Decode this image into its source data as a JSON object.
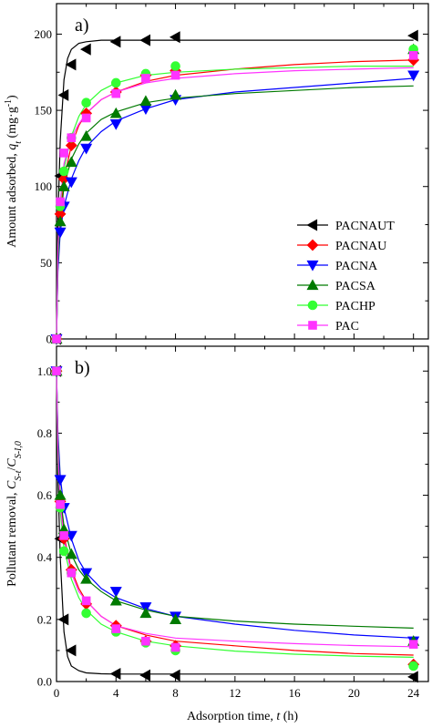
{
  "chart_data": [
    {
      "type": "scatter",
      "panel_label": "a)",
      "ylabel": "Amount adsorbed, q_t (mg·g⁻¹)",
      "ylim": [
        0,
        220
      ],
      "xlim": [
        0,
        25
      ],
      "yticks": [
        "0",
        "50",
        "100",
        "150",
        "200"
      ],
      "ytick_values": [
        0,
        50,
        100,
        150,
        200
      ],
      "legend_position": "center-right",
      "series": [
        {
          "name": "PACNAUT",
          "color": "#000000",
          "marker": "triangle-left",
          "x": [
            0,
            0.25,
            0.5,
            1,
            2,
            4,
            6,
            8,
            24
          ],
          "y": [
            0,
            107,
            160,
            180,
            190,
            195,
            196,
            198,
            199
          ],
          "fit_x": [
            0,
            0.1,
            0.25,
            0.5,
            0.75,
            1,
            1.5,
            2,
            3,
            4,
            6,
            8,
            24
          ],
          "fit_y": [
            0,
            80,
            130,
            170,
            184,
            190,
            194,
            195,
            196,
            196,
            196,
            196,
            196
          ]
        },
        {
          "name": "PACNAU",
          "color": "#ff0000",
          "marker": "diamond",
          "x": [
            0,
            0.25,
            0.5,
            1,
            2,
            4,
            6,
            8,
            24
          ],
          "y": [
            0,
            82,
            105,
            127,
            148,
            162,
            173,
            176,
            183
          ],
          "fit_x": [
            0,
            0.1,
            0.25,
            0.5,
            1,
            1.5,
            2,
            3,
            4,
            6,
            8,
            12,
            16,
            20,
            24
          ],
          "fit_y": [
            0,
            50,
            80,
            105,
            127,
            140,
            148,
            157,
            162,
            169,
            173,
            177,
            180,
            182,
            183
          ]
        },
        {
          "name": "PACNA",
          "color": "#0000ff",
          "marker": "triangle-down",
          "x": [
            0,
            0.25,
            0.5,
            1,
            2,
            4,
            6,
            8,
            24
          ],
          "y": [
            0,
            70,
            87,
            103,
            125,
            141,
            151,
            157,
            173
          ],
          "fit_x": [
            0,
            0.1,
            0.25,
            0.5,
            1,
            1.5,
            2,
            3,
            4,
            6,
            8,
            12,
            16,
            20,
            24
          ],
          "fit_y": [
            0,
            45,
            70,
            87,
            105,
            117,
            126,
            136,
            143,
            151,
            157,
            162,
            165,
            168,
            171
          ]
        },
        {
          "name": "PACSA",
          "color": "#007a00",
          "marker": "triangle-up",
          "x": [
            0,
            0.25,
            0.5,
            1,
            2,
            4,
            6,
            8,
            24
          ],
          "y": [
            0,
            77,
            100,
            116,
            133,
            148,
            156,
            160,
            190
          ],
          "fit_x": [
            0,
            0.1,
            0.25,
            0.5,
            1,
            1.5,
            2,
            3,
            4,
            6,
            8,
            12,
            16,
            20,
            24
          ],
          "fit_y": [
            0,
            50,
            77,
            100,
            118,
            128,
            135,
            144,
            149,
            155,
            158,
            161,
            163,
            165,
            166
          ]
        },
        {
          "name": "PACHP",
          "color": "#33ff33",
          "marker": "circle",
          "x": [
            0,
            0.25,
            0.5,
            1,
            2,
            4,
            6,
            8,
            24
          ],
          "y": [
            0,
            87,
            110,
            132,
            155,
            168,
            174,
            179,
            190
          ],
          "fit_x": [
            0,
            0.1,
            0.25,
            0.5,
            1,
            1.5,
            2,
            3,
            4,
            6,
            8,
            12,
            16,
            20,
            24
          ],
          "fit_y": [
            0,
            60,
            87,
            112,
            133,
            146,
            154,
            163,
            168,
            173,
            175,
            177,
            178,
            179,
            179
          ]
        },
        {
          "name": "PAC",
          "color": "#ff33ff",
          "marker": "square",
          "x": [
            0,
            0.25,
            0.5,
            1,
            2,
            4,
            6,
            8,
            24
          ],
          "y": [
            0,
            90,
            122,
            132,
            145,
            161,
            171,
            173,
            186
          ],
          "fit_x": [
            0,
            0.1,
            0.25,
            0.5,
            1,
            1.5,
            2,
            3,
            4,
            6,
            8,
            12,
            16,
            20,
            24
          ],
          "fit_y": [
            0,
            60,
            90,
            115,
            132,
            141,
            148,
            157,
            162,
            168,
            171,
            174,
            176,
            177,
            178
          ]
        }
      ]
    },
    {
      "type": "scatter",
      "panel_label": "b)",
      "xlabel": "Adsorption time, t (h)",
      "ylabel": "Pollutant removal, C_S-t/C_S-I,0",
      "ylim": [
        0,
        1.08
      ],
      "xlim": [
        0,
        25
      ],
      "xticks": [
        "0",
        "4",
        "8",
        "12",
        "16",
        "20",
        "24"
      ],
      "xtick_values": [
        0,
        4,
        8,
        12,
        16,
        20,
        24
      ],
      "yticks": [
        "0.0",
        "0.2",
        "0.4",
        "0.6",
        "0.8",
        "1.0"
      ],
      "ytick_values": [
        0,
        0.2,
        0.4,
        0.6,
        0.8,
        1.0
      ],
      "series": [
        {
          "name": "PACNAUT",
          "color": "#000000",
          "marker": "triangle-left",
          "x": [
            0,
            0.25,
            0.5,
            1,
            4,
            6,
            8,
            24
          ],
          "y": [
            1.0,
            0.46,
            0.2,
            0.1,
            0.025,
            0.02,
            0.02,
            0.015
          ],
          "fit_x": [
            0,
            0.1,
            0.25,
            0.5,
            0.75,
            1,
            1.5,
            2,
            3,
            4,
            6,
            8,
            24
          ],
          "fit_y": [
            1.0,
            0.65,
            0.4,
            0.16,
            0.08,
            0.05,
            0.035,
            0.028,
            0.025,
            0.024,
            0.024,
            0.024,
            0.024
          ]
        },
        {
          "name": "PACNAU",
          "color": "#ff0000",
          "marker": "diamond",
          "x": [
            0,
            0.25,
            0.5,
            1,
            2,
            4,
            6,
            8,
            24
          ],
          "y": [
            1.0,
            0.58,
            0.46,
            0.36,
            0.25,
            0.18,
            0.13,
            0.115,
            0.055
          ],
          "fit_x": [
            0,
            0.1,
            0.25,
            0.5,
            1,
            1.5,
            2,
            3,
            4,
            6,
            8,
            12,
            16,
            20,
            24
          ],
          "fit_y": [
            1.0,
            0.75,
            0.58,
            0.47,
            0.36,
            0.3,
            0.26,
            0.21,
            0.18,
            0.15,
            0.13,
            0.115,
            0.1,
            0.09,
            0.085
          ]
        },
        {
          "name": "PACNA",
          "color": "#0000ff",
          "marker": "triangle-down",
          "x": [
            0,
            0.25,
            0.5,
            1,
            2,
            4,
            6,
            8,
            24
          ],
          "y": [
            1.0,
            0.65,
            0.56,
            0.47,
            0.35,
            0.29,
            0.24,
            0.21,
            0.13
          ],
          "fit_x": [
            0,
            0.1,
            0.25,
            0.5,
            1,
            1.5,
            2,
            3,
            4,
            6,
            8,
            12,
            16,
            20,
            24
          ],
          "fit_y": [
            1.0,
            0.8,
            0.66,
            0.56,
            0.46,
            0.39,
            0.35,
            0.3,
            0.27,
            0.235,
            0.21,
            0.185,
            0.165,
            0.15,
            0.14
          ]
        },
        {
          "name": "PACSA",
          "color": "#007a00",
          "marker": "triangle-up",
          "x": [
            0,
            0.25,
            0.5,
            1,
            2,
            4,
            6,
            8,
            24
          ],
          "y": [
            1.0,
            0.6,
            0.49,
            0.41,
            0.33,
            0.26,
            0.22,
            0.2,
            0.13
          ],
          "fit_x": [
            0,
            0.1,
            0.25,
            0.5,
            1,
            1.5,
            2,
            3,
            4,
            6,
            8,
            12,
            16,
            20,
            24
          ],
          "fit_y": [
            1.0,
            0.78,
            0.6,
            0.5,
            0.41,
            0.36,
            0.33,
            0.29,
            0.26,
            0.23,
            0.21,
            0.195,
            0.185,
            0.178,
            0.172
          ]
        },
        {
          "name": "PACHP",
          "color": "#33ff33",
          "marker": "circle",
          "x": [
            0,
            0.25,
            0.5,
            1,
            2,
            4,
            6,
            8,
            24
          ],
          "y": [
            1.0,
            0.56,
            0.42,
            0.35,
            0.22,
            0.16,
            0.125,
            0.1,
            0.05
          ],
          "fit_x": [
            0,
            0.1,
            0.25,
            0.5,
            1,
            1.5,
            2,
            3,
            4,
            6,
            8,
            12,
            16,
            20,
            24
          ],
          "fit_y": [
            1.0,
            0.72,
            0.55,
            0.43,
            0.33,
            0.27,
            0.23,
            0.185,
            0.16,
            0.13,
            0.115,
            0.098,
            0.088,
            0.082,
            0.078
          ]
        },
        {
          "name": "PAC",
          "color": "#ff33ff",
          "marker": "square",
          "x": [
            0,
            0.25,
            0.5,
            1,
            2,
            4,
            6,
            8,
            24
          ],
          "y": [
            1.0,
            0.57,
            0.47,
            0.35,
            0.26,
            0.17,
            0.13,
            0.11,
            0.12
          ],
          "fit_x": [
            0,
            0.1,
            0.25,
            0.5,
            1,
            1.5,
            2,
            3,
            4,
            6,
            8,
            12,
            16,
            20,
            24
          ],
          "fit_y": [
            1.0,
            0.74,
            0.57,
            0.46,
            0.35,
            0.29,
            0.26,
            0.21,
            0.18,
            0.155,
            0.14,
            0.13,
            0.122,
            0.116,
            0.112
          ]
        }
      ]
    }
  ]
}
